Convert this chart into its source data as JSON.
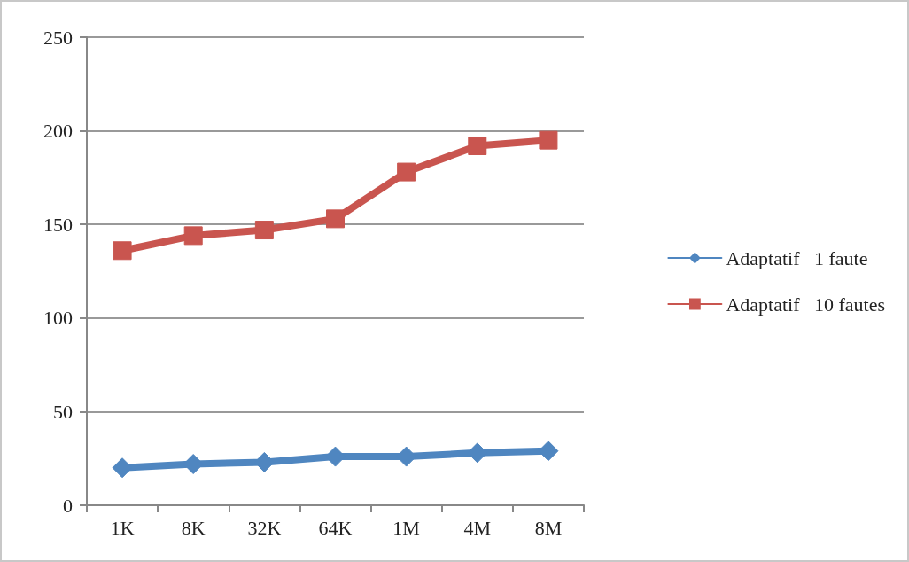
{
  "chart_data": {
    "type": "line",
    "categories": [
      "1K",
      "8K",
      "32K",
      "64K",
      "1M",
      "4M",
      "8M"
    ],
    "series": [
      {
        "name": "Adaptatif   1 faute",
        "color": "#4f86c0",
        "marker": "diamond",
        "values": [
          20,
          22,
          23,
          26,
          26,
          28,
          29
        ]
      },
      {
        "name": "Adaptatif   10 fautes",
        "color": "#c9554f",
        "marker": "square",
        "values": [
          136,
          144,
          147,
          153,
          178,
          192,
          195
        ]
      }
    ],
    "ylim": [
      0,
      250
    ],
    "yticks": [
      0,
      50,
      100,
      150,
      200,
      250
    ],
    "grid": "y",
    "legend": "right",
    "line_style": "solid"
  }
}
